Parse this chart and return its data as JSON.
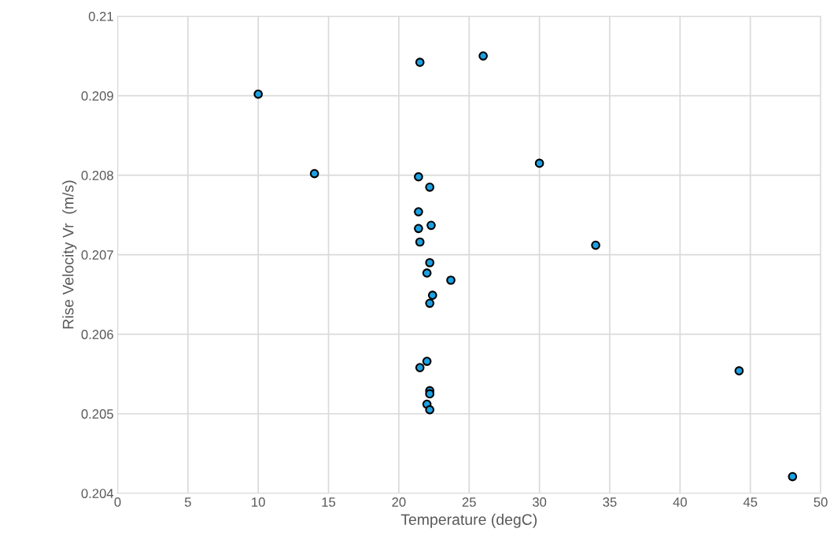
{
  "chart_data": {
    "type": "scatter",
    "xlabel": "Temperature (degC)",
    "ylabel": "Rise Velocity Vr  (m/s)",
    "x": [
      10,
      14,
      21.5,
      26,
      30,
      34,
      44.2,
      48,
      21.4,
      22.2,
      21.4,
      22.3,
      21.4,
      21.5,
      22.2,
      22.0,
      23.7,
      22.4,
      22.2,
      22.0,
      21.5,
      22.2,
      22.2,
      22.0,
      22.2
    ],
    "series": [
      {
        "color": "#1ba1e2",
        "values": [
          0.20902,
          0.20802,
          0.20942,
          0.2095,
          0.20815,
          0.20712,
          0.20554,
          0.20421,
          0.20798,
          0.20785,
          0.20754,
          0.20737,
          0.20733,
          0.20716,
          0.2069,
          0.20677,
          0.20668,
          0.20649,
          0.20639,
          0.20566,
          0.20558,
          0.20529,
          0.20525,
          0.20512,
          0.20505
        ]
      }
    ],
    "xlim": [
      0,
      50
    ],
    "xticks": [
      0,
      5,
      10,
      15,
      20,
      25,
      30,
      35,
      40,
      45,
      50
    ],
    "ylim": [
      0.204,
      0.21
    ],
    "yticks": [
      0.204,
      0.205,
      0.206,
      0.207,
      0.208,
      0.209,
      0.21
    ],
    "grid": true,
    "marker": "circle"
  }
}
